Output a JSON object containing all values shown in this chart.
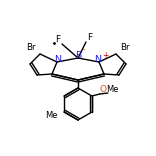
{
  "bg_color": "#ffffff",
  "bond_color": "#000000",
  "N_color": "#2222dd",
  "B_color": "#2222dd",
  "F_color": "#000000",
  "Br_color": "#000000",
  "O_color": "#dd4400",
  "charge_color": "#cc0000",
  "figsize": [
    1.52,
    1.52
  ],
  "dpi": 100,
  "lw": 1.0
}
